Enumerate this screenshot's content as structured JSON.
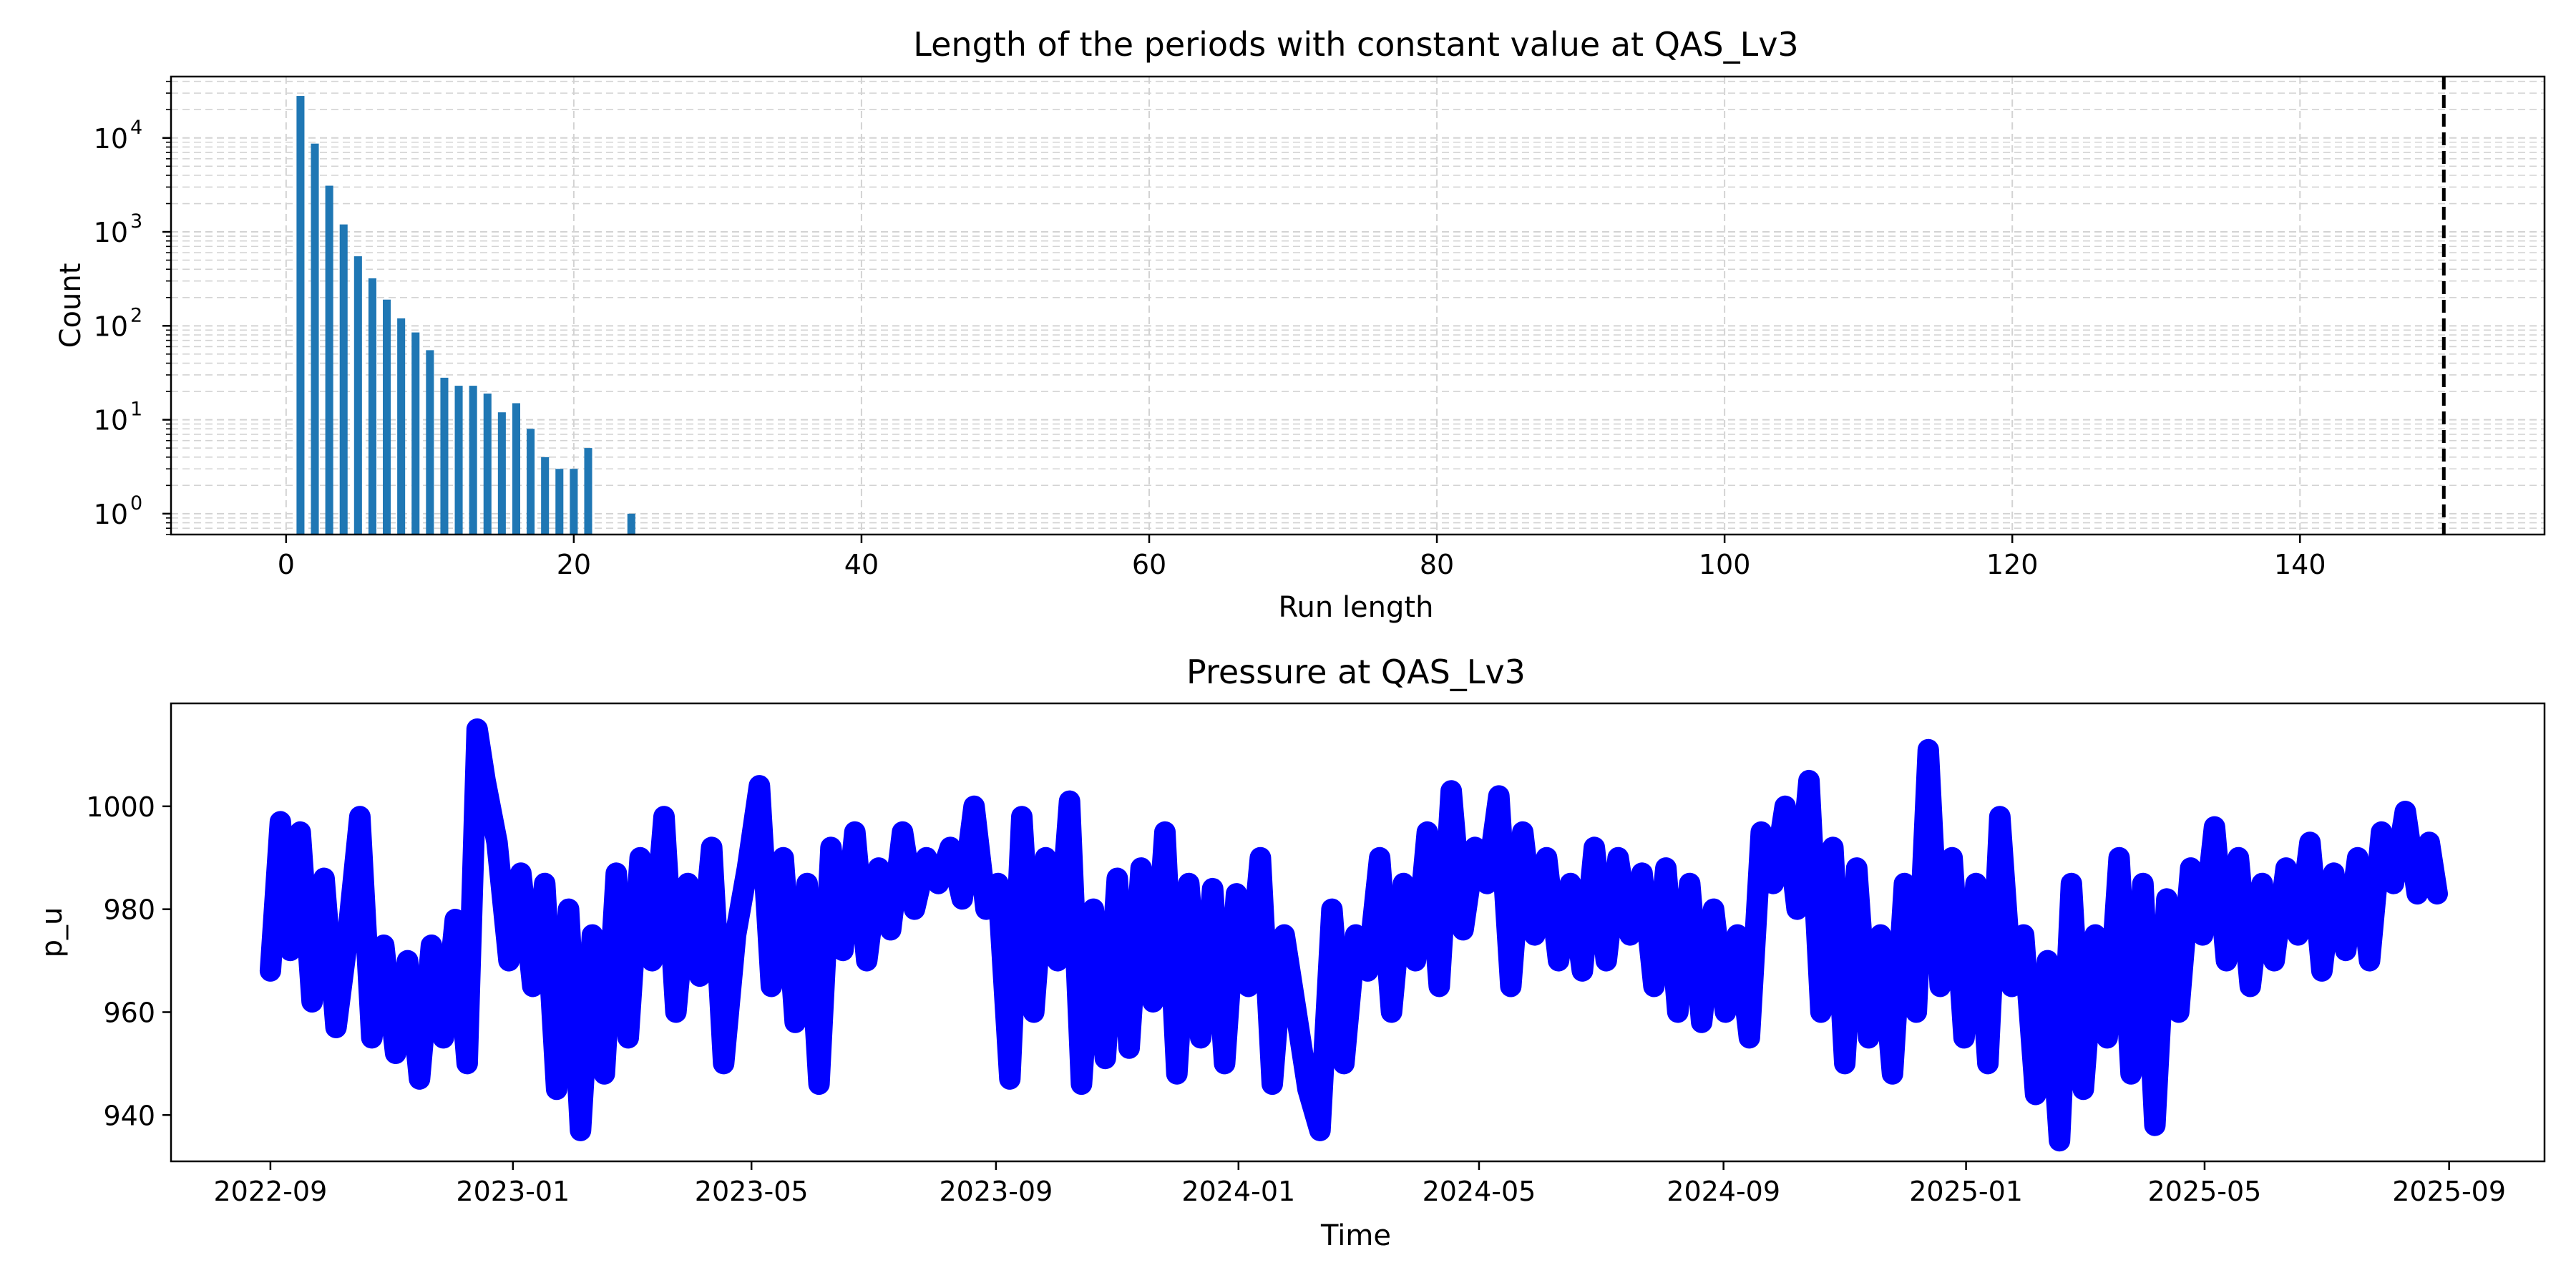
{
  "chart_data": [
    {
      "type": "bar",
      "title": "Length of the periods with constant value at QAS_Lv3",
      "xlabel": "Run length",
      "ylabel": "Count",
      "yscale": "log",
      "xlim": [
        -8,
        157
      ],
      "ylim": [
        0.6,
        45000
      ],
      "xticks": [
        0,
        20,
        40,
        60,
        80,
        100,
        120,
        140
      ],
      "xtick_labels": [
        "0",
        "20",
        "40",
        "60",
        "80",
        "100",
        "120",
        "140"
      ],
      "yticks": [
        1,
        10,
        100,
        1000,
        10000
      ],
      "ytick_labels": [
        {
          "base": "10",
          "exp": "0"
        },
        {
          "base": "10",
          "exp": "1"
        },
        {
          "base": "10",
          "exp": "2"
        },
        {
          "base": "10",
          "exp": "3"
        },
        {
          "base": "10",
          "exp": "4"
        }
      ],
      "grid": true,
      "threshold_line": {
        "x": 150,
        "style": "dashed",
        "color": "#000000"
      },
      "bar_color": "#1f77b4",
      "x": [
        1,
        2,
        3,
        4,
        5,
        6,
        7,
        8,
        9,
        10,
        11,
        12,
        13,
        14,
        15,
        16,
        17,
        18,
        19,
        20,
        21,
        24
      ],
      "values": [
        28000,
        8700,
        3100,
        1200,
        550,
        320,
        190,
        120,
        85,
        55,
        28,
        23,
        23,
        19,
        12,
        15,
        8,
        4,
        3,
        3,
        5,
        1
      ]
    },
    {
      "type": "line",
      "title": "Pressure at QAS_Lv3",
      "xlabel": "Time",
      "ylabel": "p_u",
      "xlim": [
        "2022-07-13",
        "2025-10-19"
      ],
      "ylim": [
        931,
        1020
      ],
      "xticks": [
        "2022-09-01",
        "2023-01-01",
        "2023-05-01",
        "2023-09-01",
        "2024-01-01",
        "2024-05-01",
        "2024-09-01",
        "2025-01-01",
        "2025-05-01",
        "2025-09-01"
      ],
      "xtick_labels": [
        "2022-09",
        "2023-01",
        "2023-05",
        "2023-09",
        "2024-01",
        "2024-05",
        "2024-09",
        "2025-01",
        "2025-05",
        "2025-09"
      ],
      "yticks": [
        940,
        960,
        980,
        1000
      ],
      "ytick_labels": [
        "940",
        "960",
        "980",
        "1000"
      ],
      "grid": false,
      "series_color": "#0000ff",
      "x": [
        "2022-09-01",
        "2022-09-06",
        "2022-09-11",
        "2022-09-16",
        "2022-09-22",
        "2022-09-28",
        "2022-10-04",
        "2022-10-10",
        "2022-10-16",
        "2022-10-22",
        "2022-10-28",
        "2022-11-03",
        "2022-11-09",
        "2022-11-15",
        "2022-11-21",
        "2022-11-27",
        "2022-12-03",
        "2022-12-09",
        "2022-12-14",
        "2022-12-18",
        "2022-12-24",
        "2022-12-30",
        "2023-01-05",
        "2023-01-11",
        "2023-01-17",
        "2023-01-23",
        "2023-01-29",
        "2023-02-04",
        "2023-02-10",
        "2023-02-16",
        "2023-02-22",
        "2023-02-28",
        "2023-03-06",
        "2023-03-12",
        "2023-03-18",
        "2023-03-24",
        "2023-03-30",
        "2023-04-05",
        "2023-04-11",
        "2023-04-17",
        "2023-04-23",
        "2023-04-29",
        "2023-05-05",
        "2023-05-11",
        "2023-05-17",
        "2023-05-23",
        "2023-05-29",
        "2023-06-04",
        "2023-06-10",
        "2023-06-16",
        "2023-06-22",
        "2023-06-28",
        "2023-07-04",
        "2023-07-10",
        "2023-07-16",
        "2023-07-22",
        "2023-07-28",
        "2023-08-03",
        "2023-08-09",
        "2023-08-15",
        "2023-08-21",
        "2023-08-27",
        "2023-09-02",
        "2023-09-08",
        "2023-09-14",
        "2023-09-20",
        "2023-09-26",
        "2023-10-02",
        "2023-10-08",
        "2023-10-14",
        "2023-10-20",
        "2023-10-26",
        "2023-11-01",
        "2023-11-07",
        "2023-11-13",
        "2023-11-19",
        "2023-11-25",
        "2023-12-01",
        "2023-12-07",
        "2023-12-13",
        "2023-12-19",
        "2023-12-25",
        "2023-12-31",
        "2024-01-06",
        "2024-01-12",
        "2024-01-18",
        "2024-01-24",
        "2024-01-30",
        "2024-02-05",
        "2024-02-11",
        "2024-02-17",
        "2024-02-23",
        "2024-02-29",
        "2024-03-06",
        "2024-03-12",
        "2024-03-18",
        "2024-03-24",
        "2024-03-30",
        "2024-04-05",
        "2024-04-11",
        "2024-04-17",
        "2024-04-23",
        "2024-04-29",
        "2024-05-05",
        "2024-05-11",
        "2024-05-17",
        "2024-05-23",
        "2024-05-29",
        "2024-06-04",
        "2024-06-10",
        "2024-06-16",
        "2024-06-22",
        "2024-06-28",
        "2024-07-04",
        "2024-07-10",
        "2024-07-16",
        "2024-07-22",
        "2024-07-28",
        "2024-08-03",
        "2024-08-09",
        "2024-08-15",
        "2024-08-21",
        "2024-08-27",
        "2024-09-02",
        "2024-09-08",
        "2024-09-14",
        "2024-09-20",
        "2024-09-26",
        "2024-10-02",
        "2024-10-08",
        "2024-10-14",
        "2024-10-20",
        "2024-10-26",
        "2024-11-01",
        "2024-11-07",
        "2024-11-13",
        "2024-11-19",
        "2024-11-25",
        "2024-12-01",
        "2024-12-07",
        "2024-12-13",
        "2024-12-19",
        "2024-12-25",
        "2024-12-31",
        "2025-01-06",
        "2025-01-12",
        "2025-01-18",
        "2025-01-24",
        "2025-01-30",
        "2025-02-05",
        "2025-02-11",
        "2025-02-17",
        "2025-02-23",
        "2025-03-01",
        "2025-03-07",
        "2025-03-13",
        "2025-03-19",
        "2025-03-25",
        "2025-03-31",
        "2025-04-06",
        "2025-04-12",
        "2025-04-18",
        "2025-04-24",
        "2025-04-30",
        "2025-05-06",
        "2025-05-12",
        "2025-05-18",
        "2025-05-24",
        "2025-05-30",
        "2025-06-05",
        "2025-06-11",
        "2025-06-17",
        "2025-06-23",
        "2025-06-29",
        "2025-07-05",
        "2025-07-11",
        "2025-07-17",
        "2025-07-23",
        "2025-07-29",
        "2025-08-04",
        "2025-08-10",
        "2025-08-16",
        "2025-08-22",
        "2025-08-26"
      ],
      "values": [
        968,
        997,
        972,
        995,
        962,
        986,
        957,
        975,
        998,
        955,
        973,
        952,
        970,
        947,
        973,
        955,
        978,
        950,
        1015,
        1005,
        993,
        970,
        987,
        965,
        985,
        945,
        980,
        937,
        975,
        948,
        987,
        955,
        990,
        970,
        998,
        960,
        985,
        967,
        992,
        950,
        975,
        988,
        1004,
        965,
        990,
        958,
        985,
        946,
        992,
        972,
        995,
        970,
        988,
        976,
        995,
        980,
        990,
        985,
        992,
        982,
        1000,
        980,
        985,
        947,
        998,
        960,
        990,
        970,
        1001,
        946,
        980,
        951,
        986,
        953,
        988,
        962,
        995,
        948,
        985,
        955,
        984,
        950,
        983,
        965,
        990,
        946,
        975,
        960,
        945,
        937,
        980,
        950,
        975,
        968,
        990,
        960,
        985,
        970,
        995,
        965,
        1003,
        976,
        992,
        985,
        1002,
        965,
        995,
        975,
        990,
        970,
        985,
        968,
        992,
        970,
        990,
        975,
        987,
        965,
        988,
        960,
        985,
        958,
        980,
        960,
        975,
        955,
        995,
        985,
        1000,
        980,
        1005,
        960,
        992,
        950,
        988,
        955,
        975,
        948,
        985,
        960,
        1011,
        965,
        990,
        955,
        985,
        950,
        998,
        965,
        975,
        944,
        970,
        935,
        985,
        945,
        975,
        955,
        990,
        948,
        985,
        938,
        982,
        960,
        988,
        975,
        996,
        970,
        990,
        965,
        985,
        970,
        988,
        975,
        993,
        968,
        987,
        972,
        990,
        970,
        995,
        985,
        999,
        983,
        993,
        983
      ]
    }
  ]
}
